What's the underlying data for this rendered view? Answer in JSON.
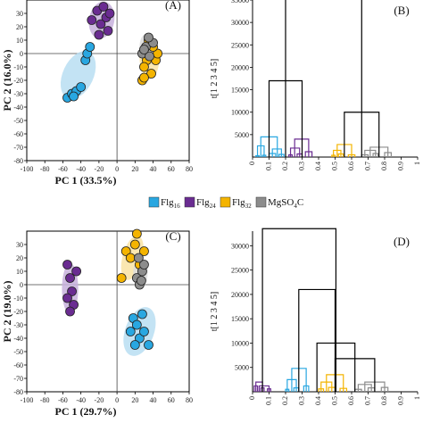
{
  "colors": {
    "Flg16": "#29a7e1",
    "Flg24": "#6a2c91",
    "Flg32": "#f4b400",
    "MgSO4C": "#8c8c8c",
    "ellipse16": "#b9def2",
    "ellipse24": "#c7b0dc",
    "ellipse32": "#f9e3a3",
    "ellipseMg": "#dcdcdc",
    "black": "#000000"
  },
  "legend": {
    "items": [
      {
        "key": "Flg16",
        "base": "Flg",
        "sub": "16"
      },
      {
        "key": "Flg24",
        "base": "Flg",
        "sub": "24"
      },
      {
        "key": "Flg32",
        "base": "Flg",
        "sub": "32"
      },
      {
        "key": "MgSO4C",
        "base": "MgSO",
        "sub": "4",
        "tail": "C"
      }
    ]
  },
  "chart_data": [
    {
      "type": "scatter",
      "panel_label": "(A)",
      "xlabel": "PC 1 (33.5%)",
      "ylabel": "PC 2 (16.0%)",
      "xlim": [
        -100,
        80
      ],
      "ylim": [
        -80,
        40
      ],
      "xticks": [
        "-100",
        "-80",
        "-60",
        "-40",
        "-20",
        "0",
        "20",
        "40",
        "60",
        "80"
      ],
      "yticks": [
        "-80",
        "-70",
        "-60",
        "-50",
        "-40",
        "-30",
        "-20",
        "-10",
        "0",
        "10",
        "20",
        "30"
      ],
      "series": [
        {
          "name": "Flg16",
          "points": [
            [
              -55,
              -33
            ],
            [
              -50,
              -30
            ],
            [
              -45,
              -28
            ],
            [
              -40,
              -25
            ],
            [
              -35,
              -5
            ],
            [
              -33,
              0
            ],
            [
              -30,
              5
            ],
            [
              -48,
              -32
            ]
          ]
        },
        {
          "name": "Flg24",
          "points": [
            [
              -28,
              25
            ],
            [
              -22,
              32
            ],
            [
              -18,
              22
            ],
            [
              -15,
              35
            ],
            [
              -12,
              27
            ],
            [
              -8,
              30
            ],
            [
              -10,
              17
            ],
            [
              -20,
              14
            ]
          ]
        },
        {
          "name": "Flg32",
          "points": [
            [
              28,
              -20
            ],
            [
              33,
              -5
            ],
            [
              38,
              -15
            ],
            [
              43,
              -5
            ],
            [
              30,
              -10
            ],
            [
              45,
              0
            ],
            [
              40,
              5
            ],
            [
              35,
              10
            ],
            [
              30,
              -18
            ]
          ]
        },
        {
          "name": "MgSO4C",
          "points": [
            [
              28,
              0
            ],
            [
              32,
              5
            ],
            [
              36,
              -2
            ],
            [
              40,
              8
            ],
            [
              30,
              3
            ],
            [
              35,
              12
            ]
          ]
        }
      ]
    },
    {
      "type": "dendrogram",
      "panel_label": "(B)",
      "ylabel": "t[1 2 3 4 5]",
      "ylim": [
        0,
        35000
      ],
      "yticks": [
        "5000",
        "10000",
        "15000",
        "20000",
        "25000",
        "30000",
        "35000"
      ],
      "xticks": [
        "0",
        "0.1",
        "0.2",
        "0.3",
        "0.4",
        "0.5",
        "0.6",
        "0.7",
        "0.8",
        "0.9",
        "1"
      ]
    },
    {
      "type": "scatter",
      "panel_label": "(C)",
      "xlabel": "PC 1 (29.7%)",
      "ylabel": "PC 2 (19.0%)",
      "xlim": [
        -100,
        80
      ],
      "ylim": [
        -80,
        40
      ],
      "xticks": [
        "-100",
        "-80",
        "-60",
        "-40",
        "-20",
        "0",
        "20",
        "40",
        "60",
        "80"
      ],
      "yticks": [
        "-80",
        "-70",
        "-60",
        "-50",
        "-40",
        "-30",
        "-20",
        "-10",
        "0",
        "10",
        "20",
        "30"
      ],
      "series": [
        {
          "name": "Flg24",
          "points": [
            [
              -55,
              15
            ],
            [
              -52,
              5
            ],
            [
              -50,
              -5
            ],
            [
              -55,
              -10
            ],
            [
              -48,
              -15
            ],
            [
              -52,
              -20
            ],
            [
              -45,
              10
            ]
          ]
        },
        {
          "name": "Flg16",
          "points": [
            [
              18,
              -25
            ],
            [
              22,
              -30
            ],
            [
              25,
              -40
            ],
            [
              30,
              -35
            ],
            [
              35,
              -45
            ],
            [
              20,
              -45
            ],
            [
              28,
              -22
            ],
            [
              15,
              -35
            ]
          ]
        },
        {
          "name": "Flg32",
          "points": [
            [
              10,
              25
            ],
            [
              15,
              20
            ],
            [
              20,
              30
            ],
            [
              25,
              15
            ],
            [
              22,
              38
            ],
            [
              30,
              25
            ],
            [
              5,
              5
            ]
          ]
        },
        {
          "name": "MgSO4C",
          "points": [
            [
              22,
              5
            ],
            [
              28,
              10
            ],
            [
              25,
              0
            ],
            [
              30,
              15
            ],
            [
              24,
              20
            ],
            [
              27,
              3
            ]
          ]
        }
      ]
    },
    {
      "type": "dendrogram",
      "panel_label": "(D)",
      "ylabel": "t[1 2 3 4 5]",
      "ylim": [
        0,
        33000
      ],
      "yticks": [
        "5000",
        "10000",
        "15000",
        "20000",
        "25000",
        "30000"
      ],
      "xticks": [
        "0",
        "0.1",
        "0.2",
        "0.3",
        "0.4",
        "0.5",
        "0.6",
        "0.7",
        "0.8",
        "0.9",
        "1"
      ]
    }
  ]
}
